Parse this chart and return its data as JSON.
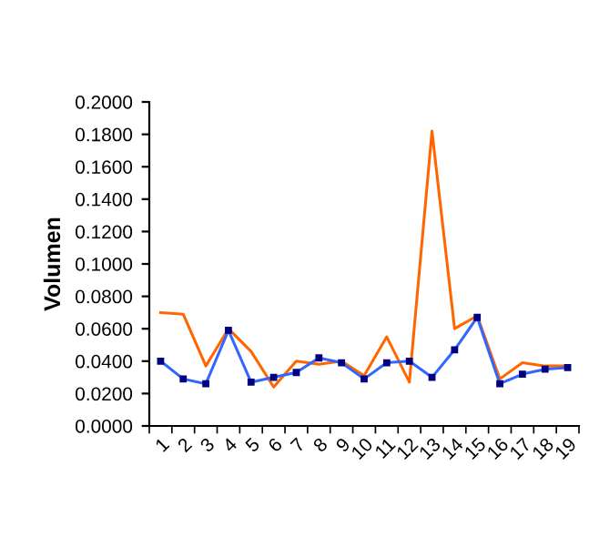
{
  "chart_data": {
    "type": "line",
    "ylabel": "Volumen",
    "categories": [
      "1",
      "2",
      "3",
      "4",
      "5",
      "6",
      "7",
      "8",
      "9",
      "10",
      "11",
      "12",
      "13",
      "14",
      "15",
      "16",
      "17",
      "18",
      "19"
    ],
    "series": [
      {
        "color": "#ff6600",
        "marker": "none",
        "values": [
          0.07,
          0.069,
          0.037,
          0.06,
          0.046,
          0.024,
          0.04,
          0.038,
          0.04,
          0.031,
          0.055,
          0.027,
          0.182,
          0.06,
          0.068,
          0.029,
          0.039,
          0.037,
          0.037
        ]
      },
      {
        "color": "#3366ff",
        "marker": "square",
        "values": [
          0.04,
          0.029,
          0.026,
          0.059,
          0.027,
          0.03,
          0.033,
          0.042,
          0.039,
          0.029,
          0.039,
          0.04,
          0.03,
          0.047,
          0.067,
          0.026,
          0.032,
          0.035,
          0.036
        ]
      }
    ],
    "ylim": [
      0,
      0.2
    ],
    "yticks": [
      {
        "value": 0,
        "label": "0.0000"
      },
      {
        "value": 0.02,
        "label": "0.0200"
      },
      {
        "value": 0.04,
        "label": "0.0400"
      },
      {
        "value": 0.06,
        "label": "0.0600"
      },
      {
        "value": 0.08,
        "label": "0.0800"
      },
      {
        "value": 0.1,
        "label": "0.1000"
      },
      {
        "value": 0.12,
        "label": "0.1200"
      },
      {
        "value": 0.14,
        "label": "0.1400"
      },
      {
        "value": 0.16,
        "label": "0.1600"
      },
      {
        "value": 0.18,
        "label": "0.1800"
      },
      {
        "value": 0.2,
        "label": "0.2000"
      }
    ],
    "grid": false,
    "legend": false
  }
}
